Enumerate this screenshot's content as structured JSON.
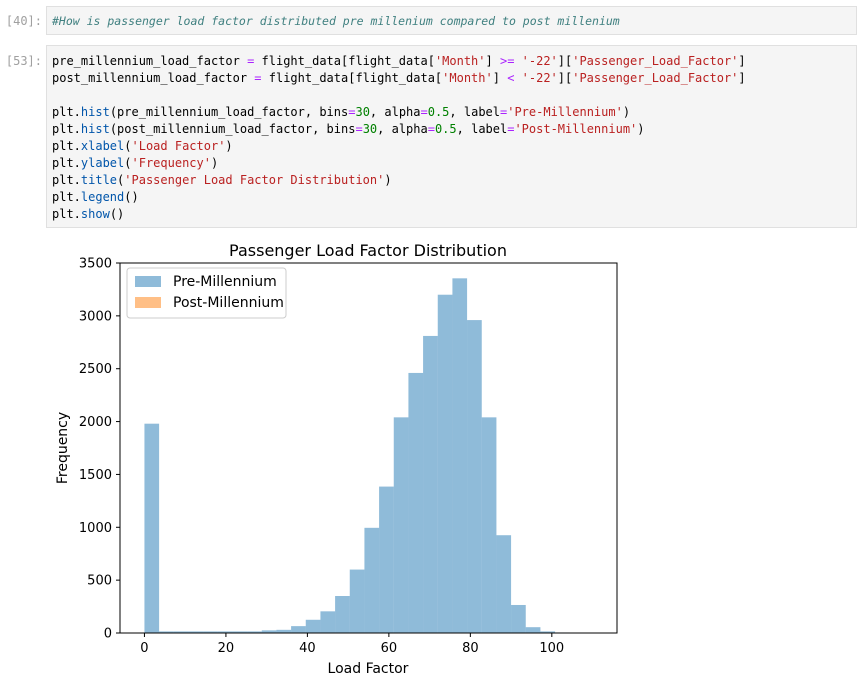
{
  "cells": [
    {
      "prompt": "[40]:",
      "line": "#How is passenger load factor distributed pre millenium compared to post millenium"
    },
    {
      "prompt": "[53]:",
      "lines": [
        "pre_millennium_load_factor = flight_data[flight_data['Month'] >= '-22']['Passenger_Load_Factor']",
        "post_millennium_load_factor = flight_data[flight_data['Month'] < '-22']['Passenger_Load_Factor']",
        "",
        "plt.hist(pre_millennium_load_factor, bins=30, alpha=0.5, label='Pre-Millennium')",
        "plt.hist(post_millennium_load_factor, bins=30, alpha=0.5, label='Post-Millennium')",
        "plt.xlabel('Load Factor')",
        "plt.ylabel('Frequency')",
        "plt.title('Passenger Load Factor Distribution')",
        "plt.legend()",
        "plt.show()"
      ]
    }
  ],
  "chart_data": {
    "type": "bar",
    "title": "Passenger Load Factor Distribution",
    "xlabel": "Load Factor",
    "ylabel": "Frequency",
    "xlim": [
      -6,
      116
    ],
    "ylim": [
      0,
      3500
    ],
    "xticks": [
      0,
      20,
      40,
      60,
      80,
      100
    ],
    "yticks": [
      0,
      500,
      1000,
      1500,
      2000,
      2500,
      3000,
      3500
    ],
    "grid": false,
    "legend_position": "top-left",
    "bin_width": 3.6,
    "bin_start": 0,
    "series": [
      {
        "name": "Pre-Millennium",
        "color": "#1f77b4",
        "alpha": 0.5,
        "values": [
          1980,
          15,
          15,
          15,
          15,
          15,
          15,
          15,
          25,
          30,
          65,
          125,
          205,
          350,
          600,
          995,
          1385,
          2040,
          2460,
          2810,
          3200,
          3355,
          2960,
          2040,
          925,
          265,
          55,
          15,
          5,
          2
        ]
      },
      {
        "name": "Post-Millennium",
        "color": "#ff7f0e",
        "alpha": 0.5,
        "values": []
      }
    ]
  }
}
